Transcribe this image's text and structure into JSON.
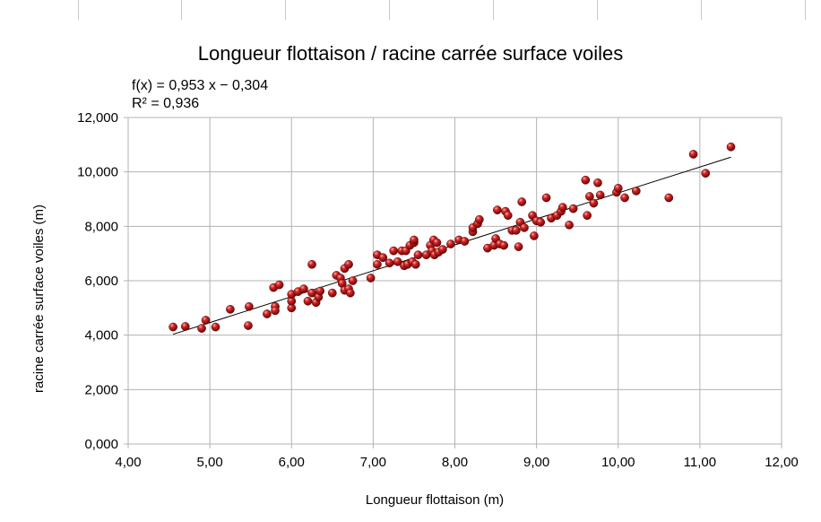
{
  "chart_data": {
    "type": "scatter",
    "title": "Longueur flottaison / racine carrée surface voiles",
    "xlabel": "Longueur flottaison (m)",
    "ylabel": "racine carrée surface voiles (m)",
    "xlim": [
      4,
      12
    ],
    "ylim": [
      0,
      12
    ],
    "x_ticks": [
      "4,00",
      "5,00",
      "6,00",
      "7,00",
      "8,00",
      "9,00",
      "10,00",
      "11,00",
      "12,00"
    ],
    "y_ticks": [
      "0,000",
      "2,000",
      "4,000",
      "6,000",
      "8,000",
      "10,000",
      "12,000"
    ],
    "grid": true,
    "marker_color": "#b01818",
    "trendline": {
      "equation": "f(x) = 0,953 x − 0,304",
      "r_squared": "R² = 0,936",
      "slope": 0.953,
      "intercept": -0.304,
      "x_range": [
        4.55,
        11.38
      ]
    },
    "points": [
      [
        4.55,
        4.3
      ],
      [
        4.7,
        4.32
      ],
      [
        4.9,
        4.25
      ],
      [
        4.95,
        4.55
      ],
      [
        5.07,
        4.3
      ],
      [
        5.25,
        4.95
      ],
      [
        5.47,
        4.35
      ],
      [
        5.48,
        5.05
      ],
      [
        5.7,
        4.78
      ],
      [
        5.78,
        5.75
      ],
      [
        5.8,
        5.05
      ],
      [
        5.8,
        4.9
      ],
      [
        5.85,
        5.85
      ],
      [
        6.0,
        5.0
      ],
      [
        6.0,
        5.25
      ],
      [
        6.0,
        5.5
      ],
      [
        6.08,
        5.6
      ],
      [
        6.15,
        5.7
      ],
      [
        6.2,
        5.25
      ],
      [
        6.25,
        6.6
      ],
      [
        6.25,
        5.55
      ],
      [
        6.3,
        5.2
      ],
      [
        6.33,
        5.4
      ],
      [
        6.35,
        5.62
      ],
      [
        6.5,
        5.55
      ],
      [
        6.55,
        6.2
      ],
      [
        6.6,
        6.1
      ],
      [
        6.62,
        5.9
      ],
      [
        6.65,
        6.45
      ],
      [
        6.65,
        5.65
      ],
      [
        6.7,
        6.6
      ],
      [
        6.7,
        5.7
      ],
      [
        6.72,
        5.55
      ],
      [
        6.75,
        6.0
      ],
      [
        6.97,
        6.1
      ],
      [
        7.05,
        6.95
      ],
      [
        7.05,
        6.6
      ],
      [
        7.12,
        6.85
      ],
      [
        7.2,
        6.65
      ],
      [
        7.25,
        7.1
      ],
      [
        7.3,
        6.7
      ],
      [
        7.35,
        7.1
      ],
      [
        7.38,
        6.55
      ],
      [
        7.4,
        7.1
      ],
      [
        7.42,
        6.6
      ],
      [
        7.45,
        7.3
      ],
      [
        7.48,
        6.7
      ],
      [
        7.5,
        7.4
      ],
      [
        7.5,
        7.5
      ],
      [
        7.52,
        6.6
      ],
      [
        7.55,
        6.95
      ],
      [
        7.65,
        6.95
      ],
      [
        7.7,
        7.3
      ],
      [
        7.72,
        7.1
      ],
      [
        7.74,
        7.5
      ],
      [
        7.75,
        6.95
      ],
      [
        7.78,
        7.4
      ],
      [
        7.8,
        7.05
      ],
      [
        7.85,
        7.15
      ],
      [
        7.95,
        7.35
      ],
      [
        8.05,
        7.5
      ],
      [
        8.12,
        7.45
      ],
      [
        8.22,
        7.8
      ],
      [
        8.22,
        7.95
      ],
      [
        8.28,
        8.1
      ],
      [
        8.3,
        8.25
      ],
      [
        8.4,
        7.2
      ],
      [
        8.48,
        7.3
      ],
      [
        8.5,
        7.55
      ],
      [
        8.52,
        8.6
      ],
      [
        8.55,
        7.35
      ],
      [
        8.6,
        7.3
      ],
      [
        8.62,
        8.55
      ],
      [
        8.65,
        8.4
      ],
      [
        8.7,
        7.85
      ],
      [
        8.75,
        7.85
      ],
      [
        8.78,
        7.25
      ],
      [
        8.8,
        8.15
      ],
      [
        8.82,
        8.9
      ],
      [
        8.85,
        7.95
      ],
      [
        8.95,
        8.4
      ],
      [
        8.97,
        7.65
      ],
      [
        9.0,
        8.2
      ],
      [
        9.05,
        8.15
      ],
      [
        9.12,
        9.05
      ],
      [
        9.18,
        8.3
      ],
      [
        9.25,
        8.4
      ],
      [
        9.3,
        8.55
      ],
      [
        9.32,
        8.7
      ],
      [
        9.4,
        8.05
      ],
      [
        9.45,
        8.65
      ],
      [
        9.6,
        9.7
      ],
      [
        9.62,
        8.4
      ],
      [
        9.65,
        9.1
      ],
      [
        9.7,
        8.85
      ],
      [
        9.75,
        9.6
      ],
      [
        9.78,
        9.15
      ],
      [
        9.98,
        9.25
      ],
      [
        10.0,
        9.4
      ],
      [
        10.08,
        9.05
      ],
      [
        10.22,
        9.3
      ],
      [
        10.62,
        9.05
      ],
      [
        10.92,
        10.65
      ],
      [
        11.07,
        9.95
      ],
      [
        11.38,
        10.92
      ]
    ]
  },
  "sheet": {
    "column_lines": [
      87,
      202,
      318,
      434,
      550,
      666,
      782,
      898
    ]
  }
}
